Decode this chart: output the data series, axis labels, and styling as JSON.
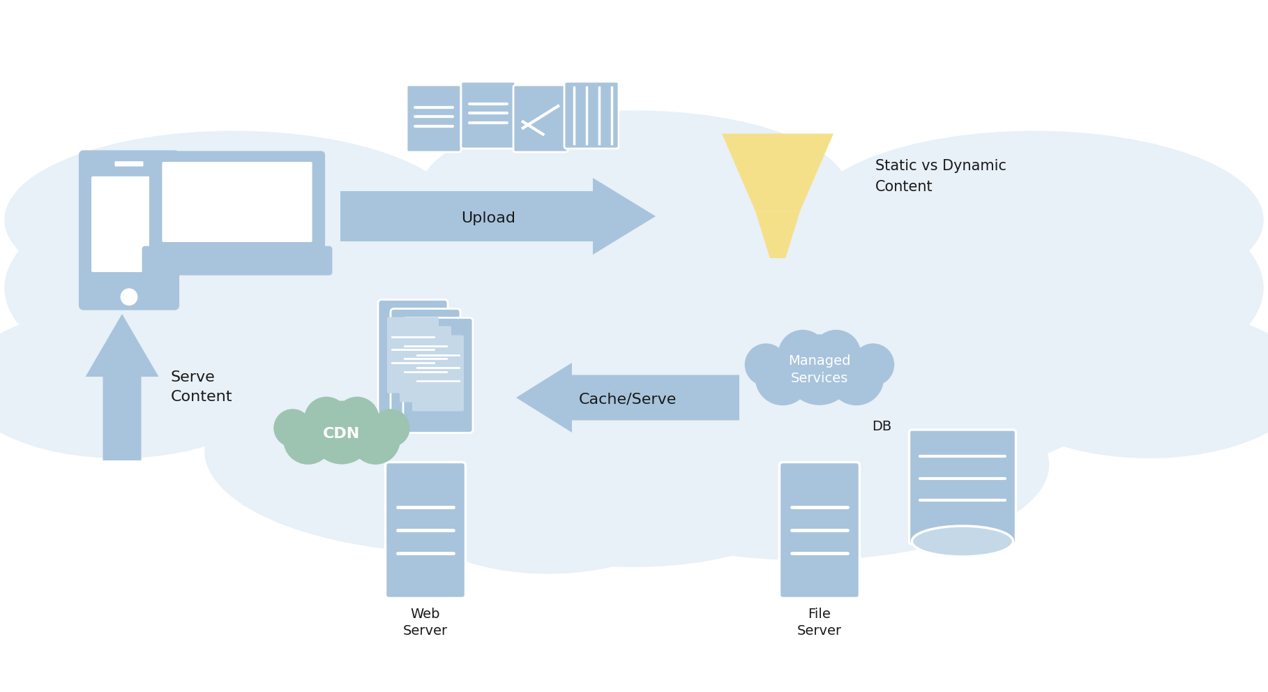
{
  "background_color": "#ffffff",
  "cloud_bg_color": "#e8f0f8",
  "icon_color": "#a8c4dc",
  "icon_color_light": "#c5d8e8",
  "green_cloud_color": "#9dc4b0",
  "yellow_funnel_color": "#f5e08a",
  "arrow_color": "#a8c4dc",
  "text_color": "#1a1a1a",
  "labels": {
    "upload": "Upload",
    "serve_content": "Serve\nContent",
    "cache_serve": "Cache/Serve",
    "cdn": "CDN",
    "web_server": "Web\nServer",
    "managed_services": "Managed\nServices",
    "file_server": "File\nServer",
    "db": "DB",
    "static_vs_dynamic": "Static vs Dynamic\nContent"
  },
  "figsize": [
    18.18,
    9.92
  ],
  "dpi": 100
}
